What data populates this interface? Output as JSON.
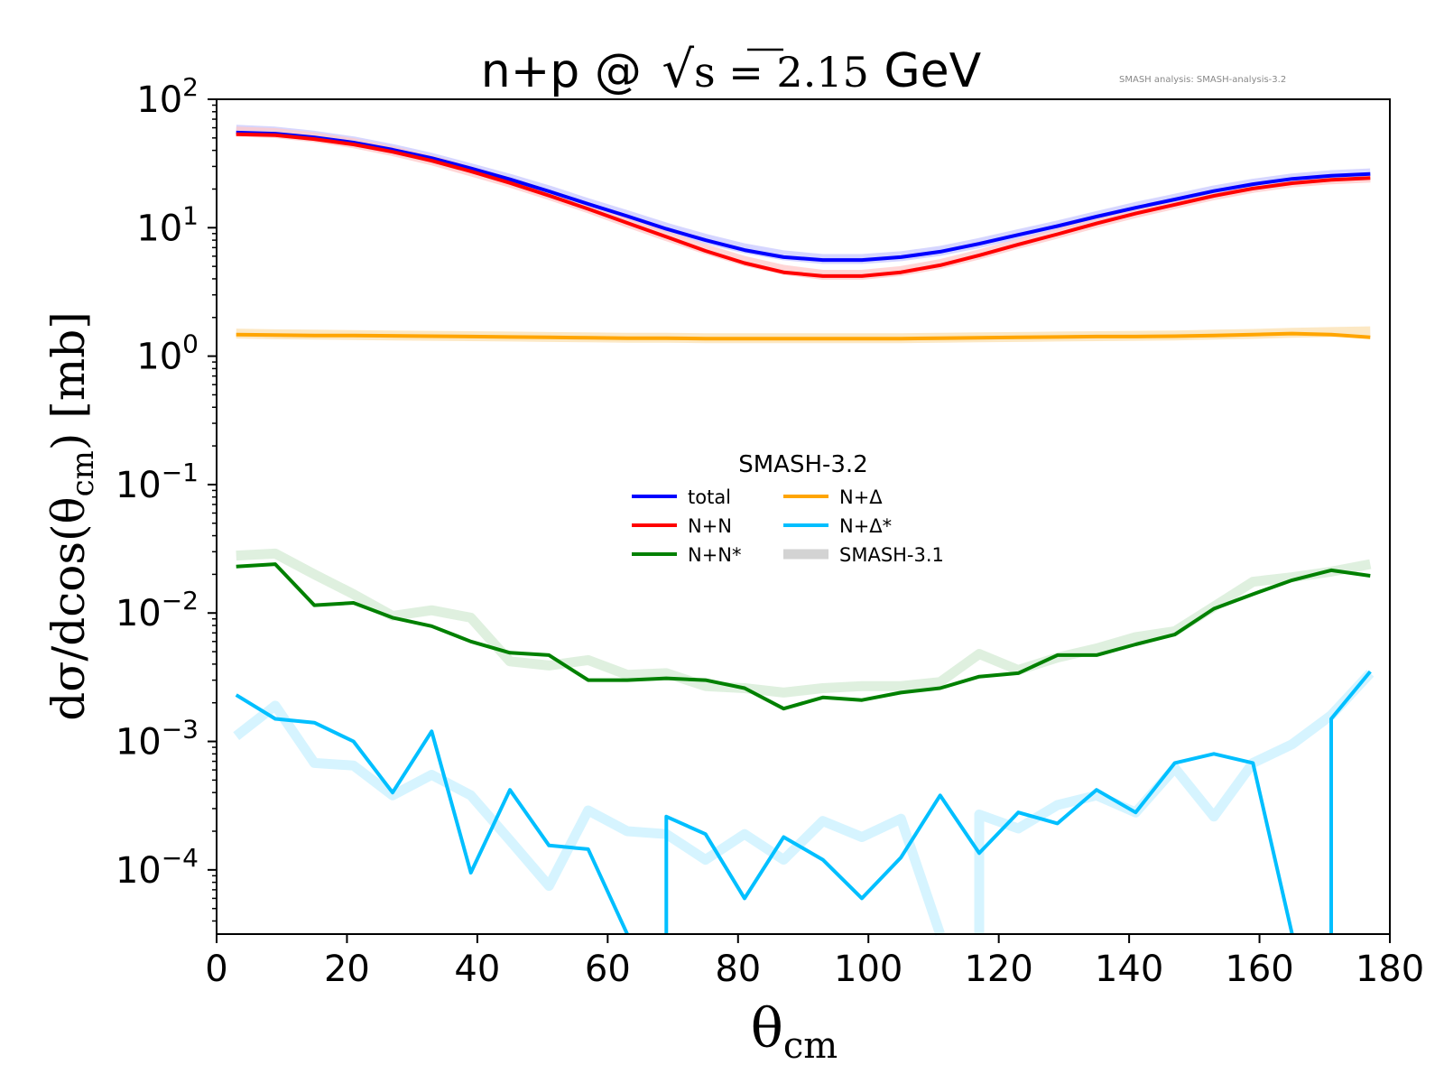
{
  "watermark": "SMASH analysis: SMASH-analysis-3.2",
  "chart_data": {
    "type": "line",
    "title": {
      "prefix": "n+p @ ",
      "math_s": "s",
      "math_eq": " = 2.15",
      "suffix": " GeV"
    },
    "xlabel": {
      "main": "θ",
      "sub": "cm"
    },
    "ylabel": {
      "pre": "dσ/dcos(θ",
      "sub": "cm",
      "post": ") [mb]"
    },
    "xlim": [
      0,
      180
    ],
    "ylim_log10": [
      -4.5,
      2
    ],
    "y_scale": "log",
    "grid": false,
    "legend": {
      "title": "SMASH-3.2",
      "position": "center"
    },
    "x_ticks": [
      "0",
      "20",
      "40",
      "60",
      "80",
      "100",
      "120",
      "140",
      "160",
      "180"
    ],
    "y_ticks": [
      {
        "base": "10",
        "exp": "2",
        "log": 2
      },
      {
        "base": "10",
        "exp": "1",
        "log": 1
      },
      {
        "base": "10",
        "exp": "0",
        "log": 0
      },
      {
        "base": "10",
        "exp": "−1",
        "log": -1
      },
      {
        "base": "10",
        "exp": "−2",
        "log": -2
      },
      {
        "base": "10",
        "exp": "−3",
        "log": -3
      },
      {
        "base": "10",
        "exp": "−4",
        "log": -4
      }
    ],
    "x": [
      3,
      9,
      15,
      21,
      27,
      33,
      39,
      45,
      51,
      57,
      63,
      69,
      75,
      81,
      87,
      93,
      99,
      105,
      111,
      117,
      123,
      129,
      135,
      141,
      147,
      153,
      159,
      165,
      171,
      177
    ],
    "reference": {
      "name": "SMASH-3.1",
      "color": "#d3d3d3",
      "series": [
        {
          "key": "total",
          "color": "#c8c8ff",
          "values": [
            58,
            56,
            52,
            47,
            41,
            35,
            29,
            24,
            19.5,
            15.5,
            12.5,
            10,
            8.2,
            6.9,
            6.1,
            5.7,
            5.7,
            6,
            6.6,
            7.6,
            8.9,
            10.4,
            12.3,
            14.5,
            16.8,
            19.5,
            22,
            24.2,
            25.7,
            26.5
          ]
        },
        {
          "key": "nn",
          "color": "#ffc8c8",
          "values": [
            56,
            54.5,
            50.5,
            45.5,
            39.5,
            33.5,
            27.5,
            22.5,
            18,
            14.2,
            11,
            8.6,
            6.8,
            5.5,
            4.7,
            4.3,
            4.3,
            4.6,
            5.2,
            6.2,
            7.5,
            9,
            10.9,
            13,
            15.3,
            17.9,
            20.4,
            22.5,
            23.8,
            24.6
          ]
        },
        {
          "key": "ndelta",
          "color": "#fbe0b0",
          "values": [
            1.5,
            1.48,
            1.47,
            1.46,
            1.45,
            1.44,
            1.43,
            1.42,
            1.41,
            1.4,
            1.39,
            1.39,
            1.38,
            1.38,
            1.38,
            1.38,
            1.38,
            1.38,
            1.39,
            1.4,
            1.41,
            1.42,
            1.43,
            1.44,
            1.45,
            1.47,
            1.49,
            1.52,
            1.54,
            1.56
          ]
        },
        {
          "key": "nnstar",
          "color": "#d4ebd4",
          "values": [
            0.028,
            0.029,
            0.02,
            0.014,
            0.0095,
            0.0105,
            0.0092,
            0.0042,
            0.0039,
            0.0043,
            0.0033,
            0.0034,
            0.0027,
            0.0026,
            0.0024,
            0.0026,
            0.0027,
            0.0027,
            0.0029,
            0.0048,
            0.0036,
            0.0045,
            0.0053,
            0.0065,
            0.0072,
            0.0112,
            0.0175,
            0.019,
            0.021,
            0.024
          ]
        },
        {
          "key": "ndeltastar",
          "color": "#c8f0ff",
          "values": [
            0.0011,
            0.0019,
            0.00068,
            0.00065,
            0.00038,
            0.00055,
            0.00038,
            0.00017,
            7.5e-05,
            0.00029,
            0.0002,
            0.00019,
            0.00012,
            0.00019,
            0.00012,
            0.00024,
            0.00018,
            0.00025,
            null,
            0.00027,
            0.00021,
            0.00032,
            0.00038,
            0.00028,
            0.00062,
            0.00026,
            0.00068,
            0.00095,
            0.0016,
            0.0034
          ]
        }
      ]
    },
    "series": [
      {
        "key": "total",
        "name": "total",
        "color": "#0000ff",
        "values": [
          55,
          54,
          50.5,
          46,
          40.5,
          34.8,
          29,
          23.8,
          19.2,
          15.3,
          12.3,
          9.8,
          8,
          6.7,
          5.9,
          5.6,
          5.6,
          5.9,
          6.5,
          7.5,
          8.8,
          10.3,
          12.2,
          14.3,
          16.6,
          19.3,
          21.8,
          24,
          25.4,
          26.2
        ]
      },
      {
        "key": "nn",
        "name": "N+N",
        "color": "#ff0000",
        "values": [
          53.5,
          52.5,
          49,
          44.5,
          39,
          33.2,
          27.5,
          22.3,
          17.8,
          14,
          10.9,
          8.5,
          6.6,
          5.3,
          4.5,
          4.2,
          4.2,
          4.5,
          5.1,
          6.1,
          7.4,
          8.9,
          10.8,
          12.9,
          15.1,
          17.7,
          20.2,
          22.2,
          23.6,
          24.4
        ]
      },
      {
        "key": "ndelta",
        "name": "N+Δ",
        "color": "#ffa500",
        "values": [
          1.47,
          1.46,
          1.45,
          1.45,
          1.44,
          1.43,
          1.42,
          1.41,
          1.4,
          1.39,
          1.38,
          1.38,
          1.37,
          1.37,
          1.37,
          1.37,
          1.37,
          1.37,
          1.38,
          1.39,
          1.4,
          1.41,
          1.42,
          1.42,
          1.43,
          1.45,
          1.47,
          1.5,
          1.47,
          1.4
        ]
      },
      {
        "key": "nnstar",
        "name": "N+N*",
        "color": "#008000",
        "values": [
          0.023,
          0.024,
          0.0115,
          0.012,
          0.0092,
          0.0079,
          0.006,
          0.0049,
          0.0047,
          0.003,
          0.003,
          0.0031,
          0.003,
          0.0026,
          0.0018,
          0.0022,
          0.0021,
          0.0024,
          0.0026,
          0.0032,
          0.0034,
          0.0047,
          0.0047,
          0.0057,
          0.0068,
          0.0108,
          0.014,
          0.018,
          0.0215,
          0.0195
        ]
      },
      {
        "key": "ndeltastar",
        "name": "N+Δ*",
        "color": "#00bfff",
        "values": [
          0.0023,
          0.0015,
          0.0014,
          0.001,
          0.0004,
          0.0012,
          9.5e-05,
          0.00042,
          0.000155,
          0.000145,
          null,
          0.00026,
          0.00019,
          6e-05,
          0.00018,
          0.00012,
          6e-05,
          0.000125,
          0.00038,
          0.000135,
          0.00028,
          0.00023,
          0.00042,
          0.00028,
          0.00068,
          0.0008,
          0.00068,
          null,
          0.0015,
          0.0035
        ]
      }
    ],
    "legend_entries": [
      {
        "key": "total",
        "label": "total",
        "color": "#0000ff"
      },
      {
        "key": "ndelta",
        "label": "N+Δ",
        "color": "#ffa500"
      },
      {
        "key": "nn",
        "label": "N+N",
        "color": "#ff0000"
      },
      {
        "key": "ndeltastar",
        "label": "N+Δ*",
        "color": "#00bfff"
      },
      {
        "key": "nnstar",
        "label": "N+N*",
        "color": "#008000"
      },
      {
        "key": "smash31",
        "label": "SMASH-3.1",
        "color": "#d3d3d3"
      }
    ]
  }
}
